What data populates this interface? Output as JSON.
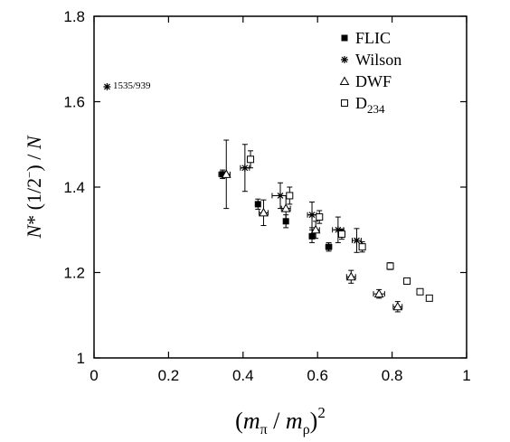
{
  "chart_data": {
    "type": "scatter",
    "ylabel": "N* (1/2⁻) / N",
    "xlabel": "(mπ / mρ)²",
    "xlim": [
      0,
      1
    ],
    "ylim": [
      1,
      1.8
    ],
    "x_ticks": [
      "0",
      "0.2",
      "0.4",
      "0.6",
      "0.8",
      "1"
    ],
    "y_ticks": [
      "1",
      "1.2",
      "1.4",
      "1.6",
      "1.8"
    ],
    "grid": false,
    "legend_position": "top-right",
    "annotation": {
      "text": "1535/939",
      "x": 0.035,
      "y": 1.635
    },
    "series": [
      {
        "name": "FLIC",
        "marker": "filled-square",
        "points": [
          {
            "x": 0.345,
            "y": 1.43,
            "xerr": 0.01,
            "yerr": 0.01
          },
          {
            "x": 0.44,
            "y": 1.36,
            "xerr": 0.005,
            "yerr": 0.012
          },
          {
            "x": 0.515,
            "y": 1.32,
            "xerr": 0.005,
            "yerr": 0.015
          },
          {
            "x": 0.585,
            "y": 1.285,
            "xerr": 0.005,
            "yerr": 0.015
          },
          {
            "x": 0.63,
            "y": 1.26,
            "xerr": 0.008,
            "yerr": 0.01
          }
        ]
      },
      {
        "name": "Wilson",
        "marker": "star",
        "points": [
          {
            "x": 0.405,
            "y": 1.445,
            "xerr": 0.012,
            "yerr": 0.055
          },
          {
            "x": 0.5,
            "y": 1.38,
            "xerr": 0.022,
            "yerr": 0.03
          },
          {
            "x": 0.585,
            "y": 1.335,
            "xerr": 0.012,
            "yerr": 0.03
          },
          {
            "x": 0.655,
            "y": 1.3,
            "xerr": 0.015,
            "yerr": 0.03
          },
          {
            "x": 0.705,
            "y": 1.275,
            "xerr": 0.012,
            "yerr": 0.028
          },
          {
            "x": 0.035,
            "y": 1.635,
            "xerr": 0,
            "yerr": 0
          }
        ]
      },
      {
        "name": "DWF",
        "marker": "open-triangle",
        "points": [
          {
            "x": 0.355,
            "y": 1.43,
            "xerr": 0.01,
            "yerr": 0.08
          },
          {
            "x": 0.455,
            "y": 1.34,
            "xerr": 0.012,
            "yerr": 0.03
          },
          {
            "x": 0.515,
            "y": 1.35,
            "xerr": 0.012,
            "yerr": 0.03
          },
          {
            "x": 0.595,
            "y": 1.3,
            "xerr": 0.01,
            "yerr": 0.02
          },
          {
            "x": 0.69,
            "y": 1.19,
            "xerr": 0.012,
            "yerr": 0.015
          },
          {
            "x": 0.765,
            "y": 1.15,
            "xerr": 0.015,
            "yerr": 0.01
          },
          {
            "x": 0.815,
            "y": 1.12,
            "xerr": 0.012,
            "yerr": 0.012
          }
        ]
      },
      {
        "name": "D₂₃₄",
        "marker": "open-square",
        "points": [
          {
            "x": 0.42,
            "y": 1.465,
            "xerr": 0.006,
            "yerr": 0.02
          },
          {
            "x": 0.525,
            "y": 1.38,
            "xerr": 0.006,
            "yerr": 0.02
          },
          {
            "x": 0.605,
            "y": 1.33,
            "xerr": 0.006,
            "yerr": 0.015
          },
          {
            "x": 0.665,
            "y": 1.29,
            "xerr": 0.008,
            "yerr": 0.012
          },
          {
            "x": 0.72,
            "y": 1.26,
            "xerr": 0.008,
            "yerr": 0.012
          },
          {
            "x": 0.795,
            "y": 1.215,
            "xerr": 0.006,
            "yerr": 0.008
          },
          {
            "x": 0.84,
            "y": 1.18,
            "xerr": 0.006,
            "yerr": 0.006
          },
          {
            "x": 0.875,
            "y": 1.155,
            "xerr": 0.006,
            "yerr": 0.006
          },
          {
            "x": 0.9,
            "y": 1.14,
            "xerr": 0.006,
            "yerr": 0.006
          }
        ]
      }
    ]
  }
}
